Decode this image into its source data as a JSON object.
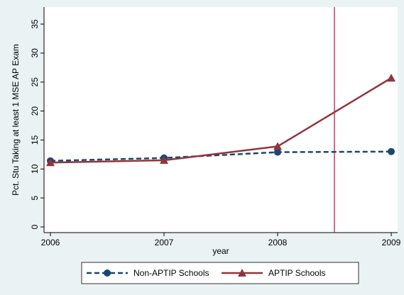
{
  "chart_data": {
    "type": "line",
    "x": [
      2006,
      2007,
      2008,
      2009
    ],
    "series": [
      {
        "name": "Non-APTIP Schools",
        "color": "#1a476f",
        "marker": "circle",
        "dash": true,
        "values": [
          11.4,
          11.9,
          12.9,
          13.0
        ]
      },
      {
        "name": "APTIP Schools",
        "color": "#90353b",
        "marker": "triangle",
        "dash": false,
        "values": [
          11.1,
          11.5,
          13.9,
          25.7
        ]
      }
    ],
    "xlim": [
      2006,
      2009
    ],
    "xticks": [
      2006,
      2007,
      2008,
      2009
    ],
    "ylim": [
      0,
      35
    ],
    "yticks": [
      0,
      5,
      10,
      15,
      20,
      25,
      30,
      35
    ],
    "x_label": "year",
    "y_label": "Pct. Stu Taking at least 1 MSE AP Exam",
    "vline": 2008.5,
    "vline_color": "#c0004a",
    "legend": "bottom"
  }
}
